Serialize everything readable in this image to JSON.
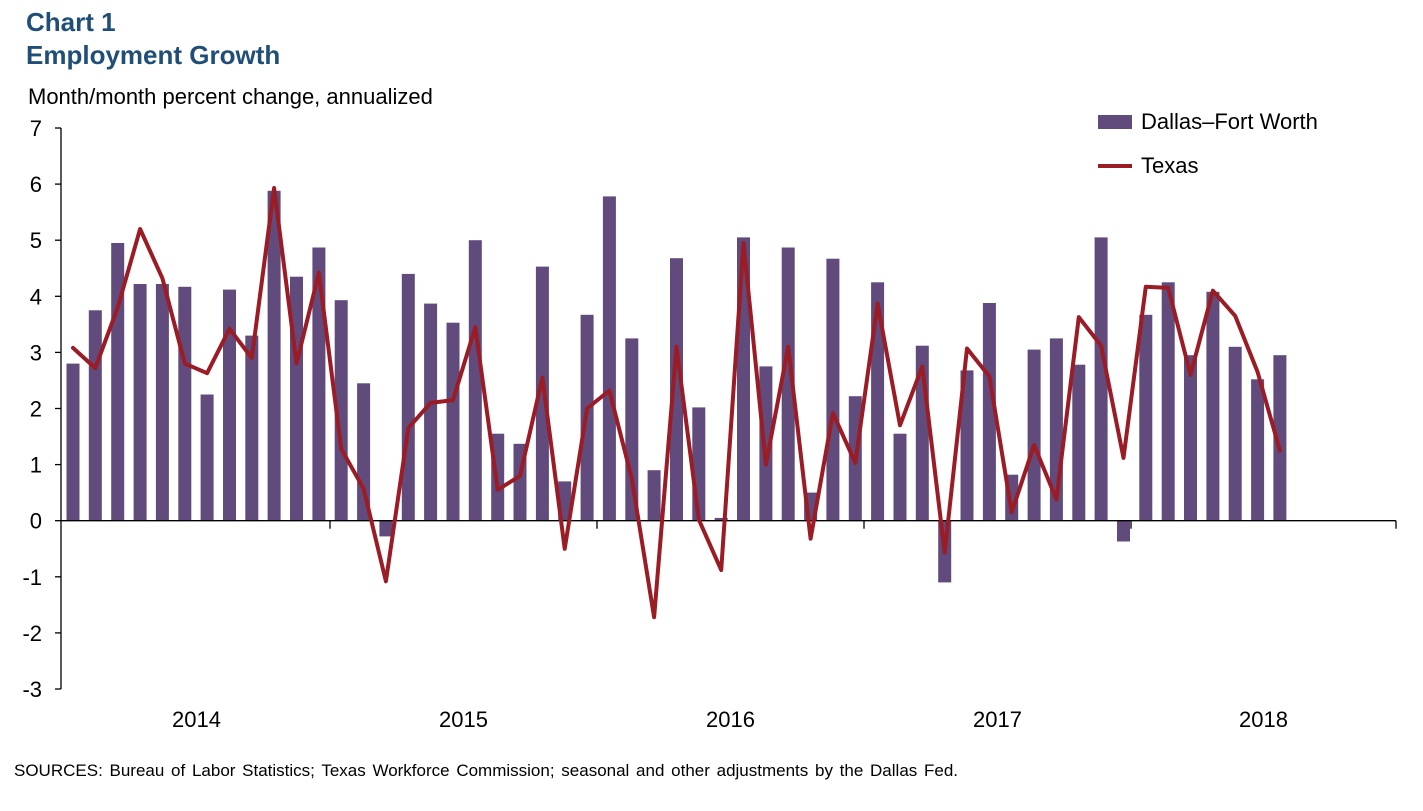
{
  "title_line1": "Chart 1",
  "title_line2": "Employment Growth",
  "units_label": "Month/month percent change, annualized",
  "source": "SOURCES: Bureau of Labor Statistics; Texas Workforce Commission; seasonal and other adjustments by the Dallas Fed.",
  "colors": {
    "bar": "#614a7c",
    "line": "#9b1c24",
    "title": "#1f4e79"
  },
  "chart_data": {
    "type": "bar",
    "ylim": [
      -3,
      7
    ],
    "yticks": [
      "-3",
      "-2",
      "-1",
      "0",
      "1",
      "2",
      "3",
      "4",
      "5",
      "6",
      "7"
    ],
    "year_labels": [
      "2014",
      "2015",
      "2016",
      "2017",
      "2018"
    ],
    "legend_placement": "top-right",
    "grid": false,
    "series": [
      {
        "name": "Dallas–Fort Worth",
        "type": "bar",
        "values": [
          2.8,
          3.75,
          4.95,
          4.22,
          4.22,
          4.17,
          2.25,
          4.12,
          3.3,
          5.88,
          4.35,
          4.87,
          3.93,
          2.45,
          -0.28,
          4.4,
          3.87,
          3.53,
          5.0,
          1.55,
          1.37,
          4.53,
          0.7,
          3.67,
          5.78,
          3.25,
          0.9,
          4.68,
          2.02,
          0.05,
          5.05,
          2.75,
          4.87,
          0.5,
          4.67,
          2.22,
          4.25,
          1.55,
          3.12,
          -1.1,
          2.68,
          3.88,
          0.82,
          3.05,
          3.25,
          2.78,
          5.05,
          -0.37,
          3.67,
          4.25,
          2.95,
          4.08,
          3.1,
          2.52,
          2.95
        ]
      },
      {
        "name": "Texas",
        "type": "line",
        "values": [
          3.08,
          2.72,
          3.8,
          5.2,
          4.32,
          2.8,
          2.63,
          3.42,
          2.9,
          5.93,
          2.8,
          4.42,
          1.28,
          0.57,
          -1.08,
          1.65,
          2.1,
          2.15,
          3.45,
          0.55,
          0.8,
          2.55,
          -0.5,
          2.0,
          2.32,
          0.75,
          -1.72,
          3.1,
          0.02,
          -0.88,
          4.95,
          1.0,
          3.1,
          -0.32,
          1.92,
          1.03,
          3.87,
          1.7,
          2.75,
          -0.57,
          3.07,
          2.57,
          0.15,
          1.35,
          0.38,
          3.63,
          3.12,
          1.12,
          4.17,
          4.15,
          2.6,
          4.1,
          3.65,
          2.65,
          1.25
        ]
      }
    ]
  }
}
